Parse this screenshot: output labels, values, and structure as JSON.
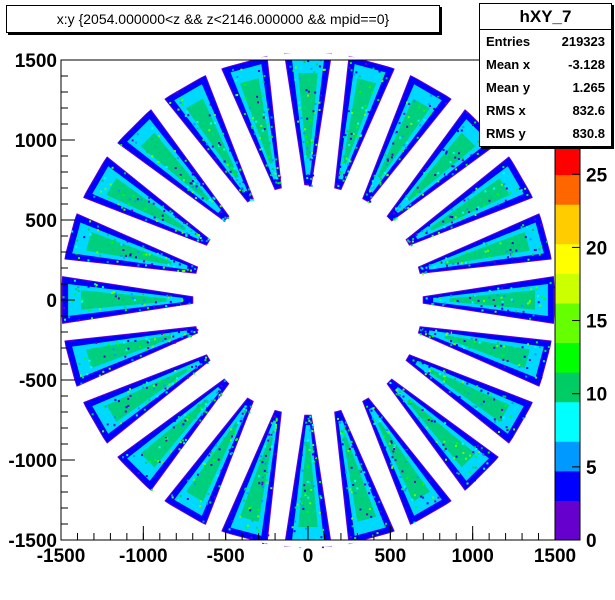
{
  "title": "x:y {2054.000000<z && z<2146.000000 && mpid==0}",
  "stats": {
    "name": "hXY_7",
    "rows": [
      {
        "label": "Entries",
        "value": "219323"
      },
      {
        "label": "Mean x",
        "value": "-3.128"
      },
      {
        "label": "Mean y",
        "value": "1.265"
      },
      {
        "label": "RMS x",
        "value": "832.6"
      },
      {
        "label": "RMS y",
        "value": "830.8"
      }
    ]
  },
  "chart_data": {
    "type": "heatmap",
    "xlim": [
      -1500,
      1500
    ],
    "ylim": [
      -1500,
      1500
    ],
    "x_ticks": [
      "-1500",
      "-1000",
      "-500",
      "0",
      "500",
      "1000",
      "1500"
    ],
    "y_ticks": [
      "1500",
      "1000",
      "500",
      "0",
      "-500",
      "-1000",
      "-1500"
    ],
    "x_tick_values": [
      -1500,
      -1000,
      -500,
      0,
      500,
      1000,
      1500
    ],
    "y_tick_values": [
      1500,
      1000,
      500,
      0,
      -500,
      -1000,
      -1500
    ],
    "z_ticks": [
      "0",
      "5",
      "10",
      "15",
      "20",
      "25"
    ],
    "z_tick_values": [
      0,
      5,
      10,
      15,
      20,
      25
    ],
    "zlim": [
      0,
      27
    ],
    "sectors": 24,
    "inner_radius": 700,
    "outer_radius": 1500,
    "colors": {
      "palette": [
        "#6600cc",
        "#0000ff",
        "#0099ff",
        "#00ffff",
        "#00cc66",
        "#00ff00",
        "#66ff00",
        "#ccff00",
        "#ffff00",
        "#ffcc00",
        "#ff6600",
        "#ff0000"
      ]
    }
  }
}
